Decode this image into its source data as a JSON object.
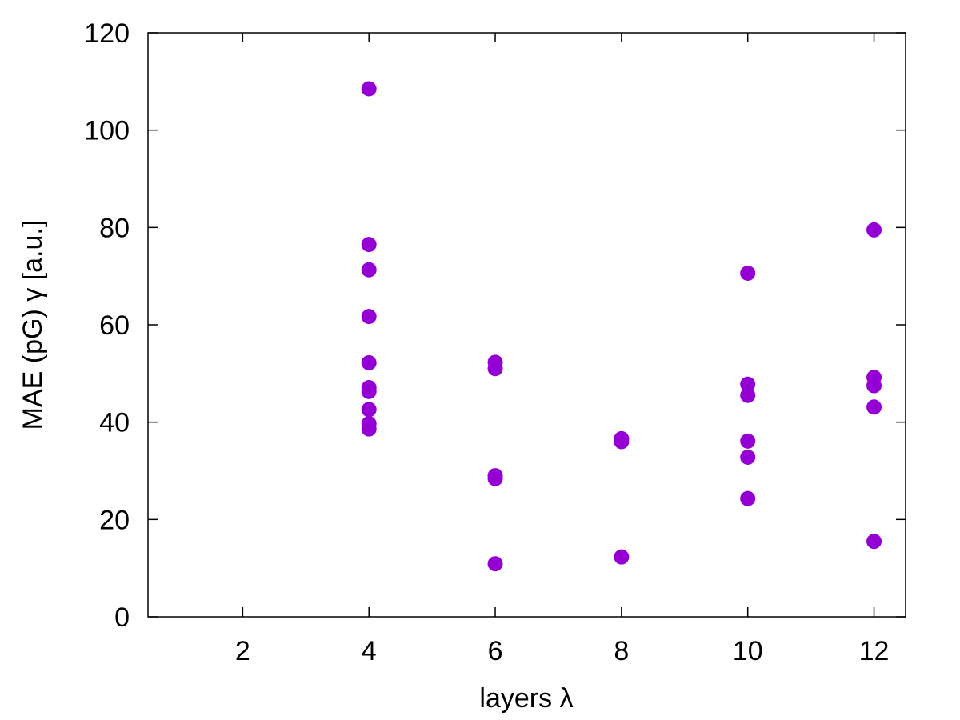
{
  "chart_data": {
    "type": "scatter",
    "title": "",
    "xlabel": "layers λ",
    "ylabel": "MAE (pG) γ [a.u.]",
    "xlim": [
      0.5,
      12.5
    ],
    "ylim": [
      0,
      120
    ],
    "x_ticks": [
      2,
      4,
      6,
      8,
      10,
      12
    ],
    "y_ticks": [
      0,
      20,
      40,
      60,
      80,
      100,
      120
    ],
    "grid": false,
    "legend": "none",
    "marker_color": "#9400d3",
    "series": [
      {
        "points": [
          {
            "x": 4,
            "y": 108.5
          },
          {
            "x": 4,
            "y": 76.5
          },
          {
            "x": 4,
            "y": 71.3
          },
          {
            "x": 4,
            "y": 61.7
          },
          {
            "x": 4,
            "y": 52.2
          },
          {
            "x": 4,
            "y": 47.1
          },
          {
            "x": 4,
            "y": 46.3
          },
          {
            "x": 4,
            "y": 42.6
          },
          {
            "x": 4,
            "y": 39.7
          },
          {
            "x": 4,
            "y": 38.6
          },
          {
            "x": 6,
            "y": 52.3
          },
          {
            "x": 6,
            "y": 51.0
          },
          {
            "x": 6,
            "y": 29.0
          },
          {
            "x": 6,
            "y": 28.4
          },
          {
            "x": 6,
            "y": 10.9
          },
          {
            "x": 8,
            "y": 36.6
          },
          {
            "x": 8,
            "y": 36.0
          },
          {
            "x": 8,
            "y": 12.3
          },
          {
            "x": 10,
            "y": 70.6
          },
          {
            "x": 10,
            "y": 47.8
          },
          {
            "x": 10,
            "y": 45.5
          },
          {
            "x": 10,
            "y": 36.1
          },
          {
            "x": 10,
            "y": 32.8
          },
          {
            "x": 10,
            "y": 24.3
          },
          {
            "x": 12,
            "y": 79.5
          },
          {
            "x": 12,
            "y": 49.2
          },
          {
            "x": 12,
            "y": 47.5
          },
          {
            "x": 12,
            "y": 43.1
          },
          {
            "x": 12,
            "y": 15.5
          }
        ]
      }
    ]
  }
}
